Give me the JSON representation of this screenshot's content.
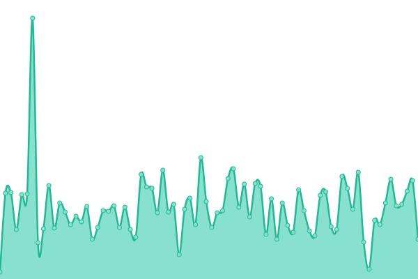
{
  "chart_data": {
    "type": "area",
    "values": [
      10,
      123,
      124,
      71,
      121,
      122,
      374,
      52,
      72,
      134,
      73,
      109,
      96,
      78,
      90,
      82,
      104,
      57,
      74,
      98,
      97,
      105,
      74,
      103,
      71,
      60,
      150,
      132,
      130,
      95,
      156,
      96,
      107,
      35,
      100,
      116,
      78,
      174,
      111,
      74,
      95,
      98,
      144,
      158,
      103,
      136,
      89,
      137,
      133,
      64,
      115,
      57,
      109,
      77,
      67,
      128,
      98,
      69,
      62,
      120,
      125,
      75,
      71,
      147,
      130,
      100,
      153,
      53,
      14,
      84,
      78,
      109,
      143,
      105,
      107,
      126,
      141,
      57
    ],
    "ylim": [
      0,
      400
    ],
    "color": "#1fba92",
    "fill": "#88e1cf"
  }
}
